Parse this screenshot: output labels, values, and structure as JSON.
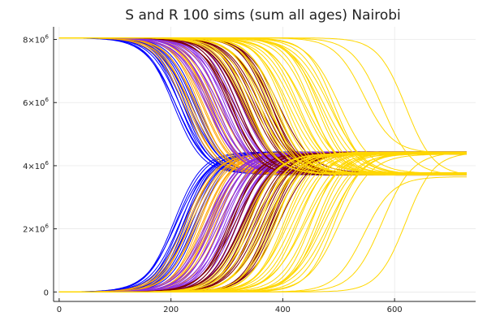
{
  "chart_data": {
    "type": "line",
    "title": "S and R 100 sims (sum all ages) Nairobi",
    "xlabel": "",
    "ylabel": "",
    "xlim": [
      -10,
      745
    ],
    "ylim": [
      -300000,
      8400000
    ],
    "grid": true,
    "legend": "none",
    "x_ticks": [
      {
        "value": 0,
        "label": "0"
      },
      {
        "value": 200,
        "label": "200"
      },
      {
        "value": 400,
        "label": "400"
      },
      {
        "value": 600,
        "label": "600"
      }
    ],
    "y_ticks": [
      {
        "value": 0,
        "base": "0",
        "exp": ""
      },
      {
        "value": 2000000,
        "base": "2×10",
        "exp": "6"
      },
      {
        "value": 4000000,
        "base": "4×10",
        "exp": "6"
      },
      {
        "value": 6000000,
        "base": "6×10",
        "exp": "6"
      },
      {
        "value": 8000000,
        "base": "8×10",
        "exp": "6"
      }
    ],
    "series": [
      {
        "color": "#0000ff",
        "x_end": 730,
        "count": 14,
        "S_start": 8050000,
        "midpoint_range": [
          205,
          248
        ],
        "width_range": [
          24,
          28
        ],
        "S_final_range": [
          3700000,
          3780000
        ],
        "R_final_range": [
          4360000,
          4440000
        ]
      },
      {
        "color": "#ffa500",
        "x_end": 730,
        "count": 16,
        "S_start": 8050000,
        "midpoint_range": [
          225,
          290
        ],
        "width_range": [
          24,
          29
        ],
        "S_final_range": [
          3700000,
          3780000
        ],
        "R_final_range": [
          4360000,
          4440000
        ]
      },
      {
        "color": "#8a2be2",
        "x_end": 730,
        "count": 20,
        "S_start": 8050000,
        "midpoint_range": [
          262,
          338
        ],
        "width_range": [
          24,
          30
        ],
        "S_final_range": [
          3700000,
          3780000
        ],
        "R_final_range": [
          4360000,
          4440000
        ]
      },
      {
        "color": "#800000",
        "x_end": 730,
        "count": 20,
        "S_start": 8050000,
        "midpoint_range": [
          302,
          392
        ],
        "width_range": [
          24,
          30
        ],
        "S_final_range": [
          3700000,
          3780000
        ],
        "R_final_range": [
          4360000,
          4440000
        ]
      },
      {
        "color": "#ffd700",
        "x_end": 730,
        "count": 30,
        "S_start": 8050000,
        "midpoint_range": [
          330,
          500
        ],
        "width_range": [
          24,
          31
        ],
        "S_final_range": [
          3700000,
          3780000
        ],
        "R_final_range": [
          4360000,
          4440000
        ],
        "outliers": [
          {
            "midpoint": 545,
            "width": 26,
            "S_final": 4400000,
            "R_final": 3650000
          },
          {
            "midpoint": 578,
            "width": 27,
            "S_final": 3690000,
            "R_final": 4430000
          },
          {
            "midpoint": 620,
            "width": 25,
            "S_final": 3680000,
            "R_final": 4420000
          }
        ]
      }
    ]
  }
}
